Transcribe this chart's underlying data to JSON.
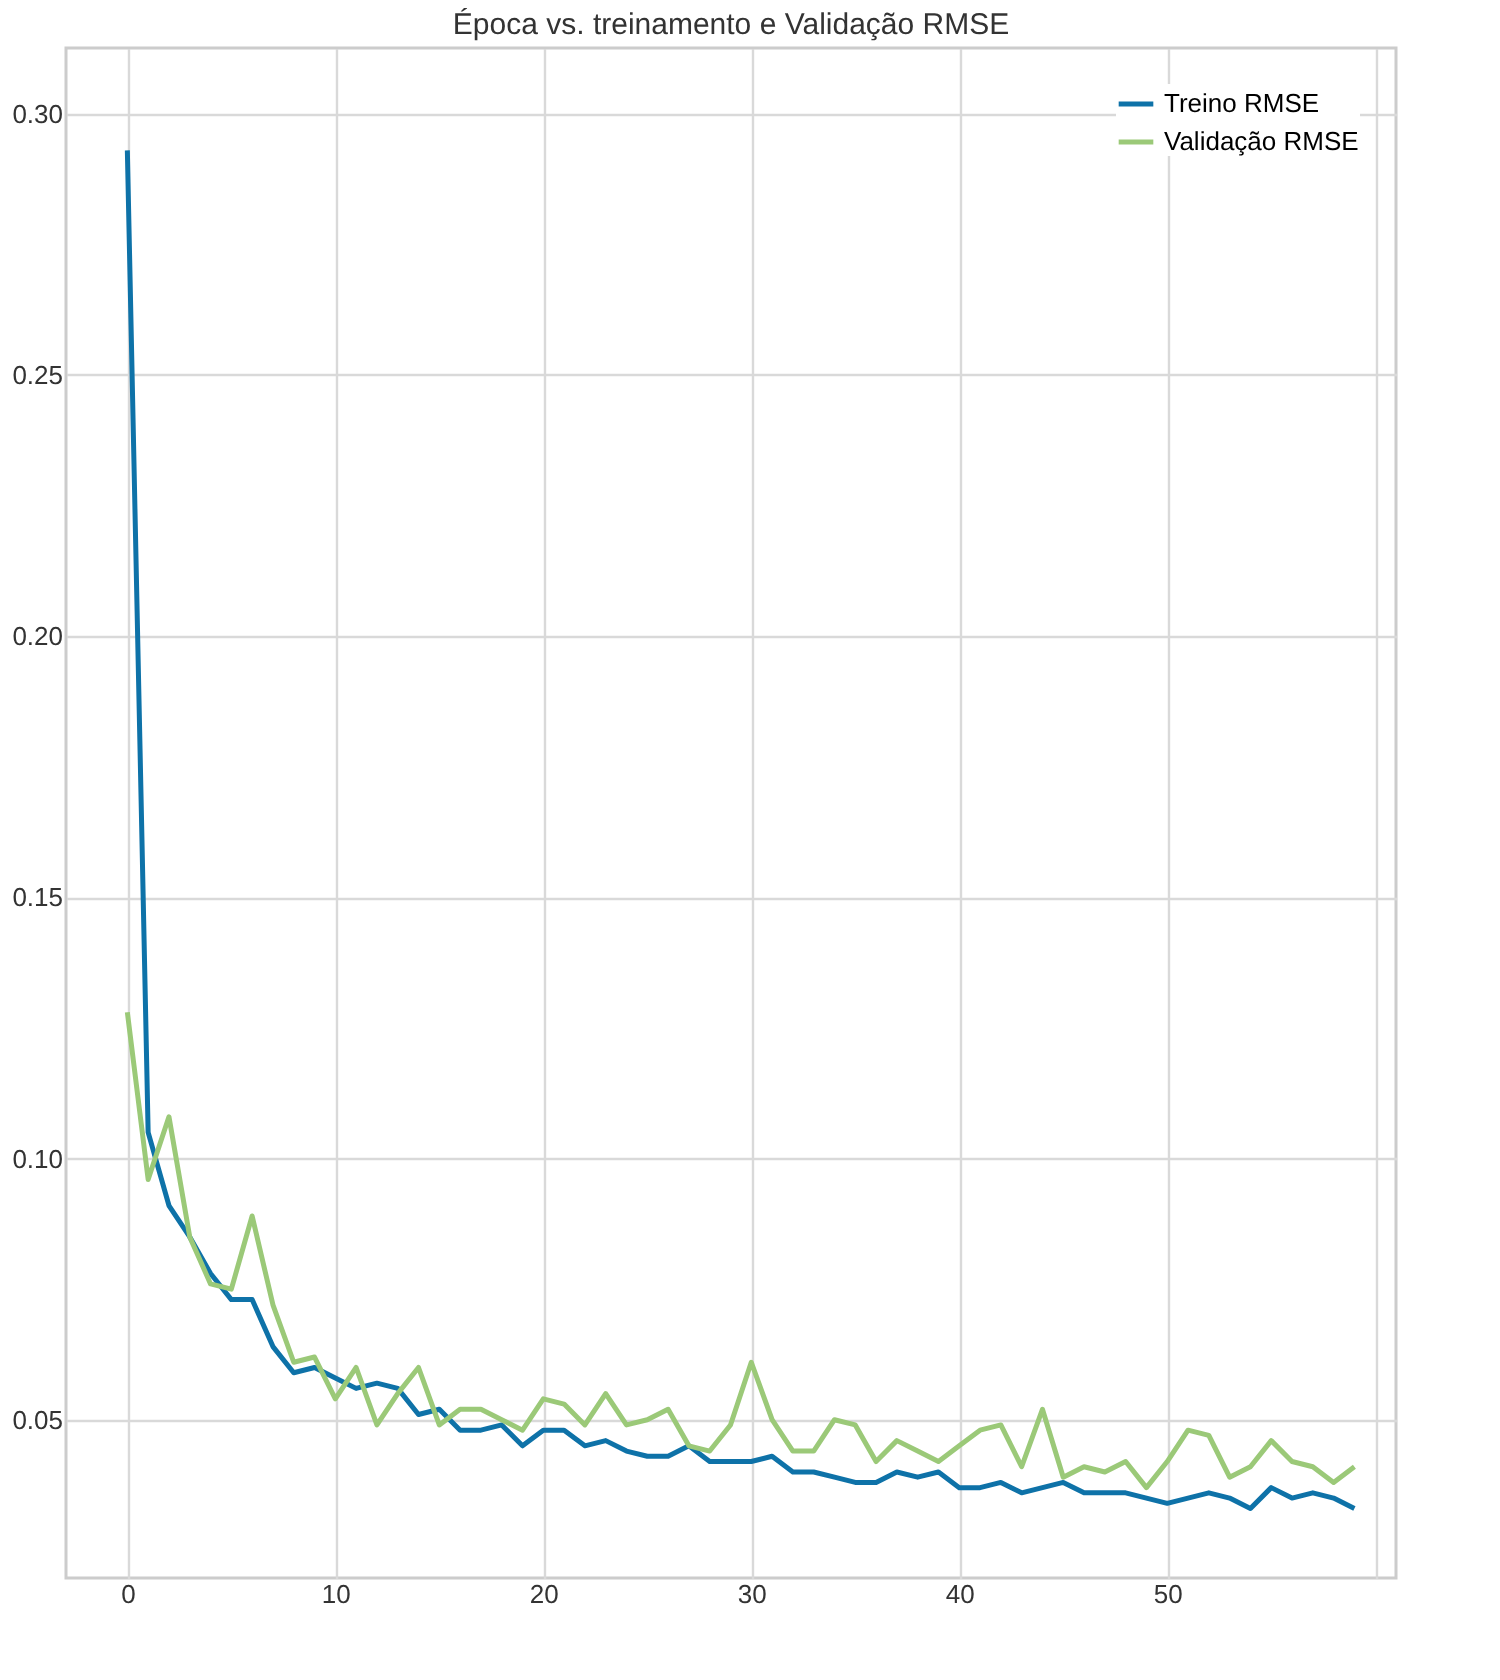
{
  "chart_data": {
    "type": "line",
    "title": "Época vs. treinamento e Validação RMSE",
    "x": [
      0,
      1,
      2,
      3,
      4,
      5,
      6,
      7,
      8,
      9,
      10,
      11,
      12,
      13,
      14,
      15,
      16,
      17,
      18,
      19,
      20,
      21,
      22,
      23,
      24,
      25,
      26,
      27,
      28,
      29,
      30,
      31,
      32,
      33,
      34,
      35,
      36,
      37,
      38,
      39,
      40,
      41,
      42,
      43,
      44,
      45,
      46,
      47,
      48,
      49,
      50,
      51,
      52,
      53,
      54,
      55,
      56,
      57,
      58,
      59
    ],
    "series": [
      {
        "name": "Treino RMSE",
        "color": "#0e72a8",
        "values": [
          0.293,
          0.105,
          0.091,
          0.085,
          0.078,
          0.073,
          0.073,
          0.064,
          0.059,
          0.06,
          0.058,
          0.056,
          0.057,
          0.056,
          0.051,
          0.052,
          0.048,
          0.048,
          0.049,
          0.045,
          0.048,
          0.048,
          0.045,
          0.046,
          0.044,
          0.043,
          0.043,
          0.045,
          0.042,
          0.042,
          0.042,
          0.043,
          0.04,
          0.04,
          0.039,
          0.038,
          0.038,
          0.04,
          0.039,
          0.04,
          0.037,
          0.037,
          0.038,
          0.036,
          0.037,
          0.038,
          0.036,
          0.036,
          0.036,
          0.035,
          0.034,
          0.035,
          0.036,
          0.035,
          0.033,
          0.037,
          0.035,
          0.036,
          0.035,
          0.033
        ]
      },
      {
        "name": "Validação RMSE",
        "color": "#9bc978",
        "values": [
          0.128,
          0.096,
          0.108,
          0.085,
          0.076,
          0.075,
          0.089,
          0.072,
          0.061,
          0.062,
          0.054,
          0.06,
          0.049,
          0.055,
          0.06,
          0.049,
          0.052,
          0.052,
          0.05,
          0.048,
          0.054,
          0.053,
          0.049,
          0.055,
          0.049,
          0.05,
          0.052,
          0.045,
          0.044,
          0.049,
          0.061,
          0.05,
          0.044,
          0.044,
          0.05,
          0.049,
          0.042,
          0.046,
          0.044,
          0.042,
          0.045,
          0.048,
          0.049,
          0.041,
          0.052,
          0.039,
          0.041,
          0.04,
          0.042,
          0.037,
          0.042,
          0.048,
          0.047,
          0.039,
          0.041,
          0.046,
          0.042,
          0.041,
          0.038,
          0.041
        ]
      }
    ],
    "xlim": [
      -2.95,
      61
    ],
    "xticks": [
      0,
      10,
      20,
      30,
      40,
      50,
      {
        "value": 60,
        "label": null
      }
    ],
    "ylim": [
      0.0197,
      0.3126
    ],
    "yticks": [
      {
        "value": 0.05,
        "label": "0.05"
      },
      {
        "value": 0.1,
        "label": "0.10"
      },
      {
        "value": 0.15,
        "label": "0.15"
      },
      {
        "value": 0.2,
        "label": "0.20"
      },
      {
        "value": 0.25,
        "label": "0.25"
      },
      {
        "value": 0.3,
        "label": "0.30"
      }
    ],
    "grid": true,
    "legend": "top right",
    "line_style": "solid",
    "marker": "none"
  }
}
